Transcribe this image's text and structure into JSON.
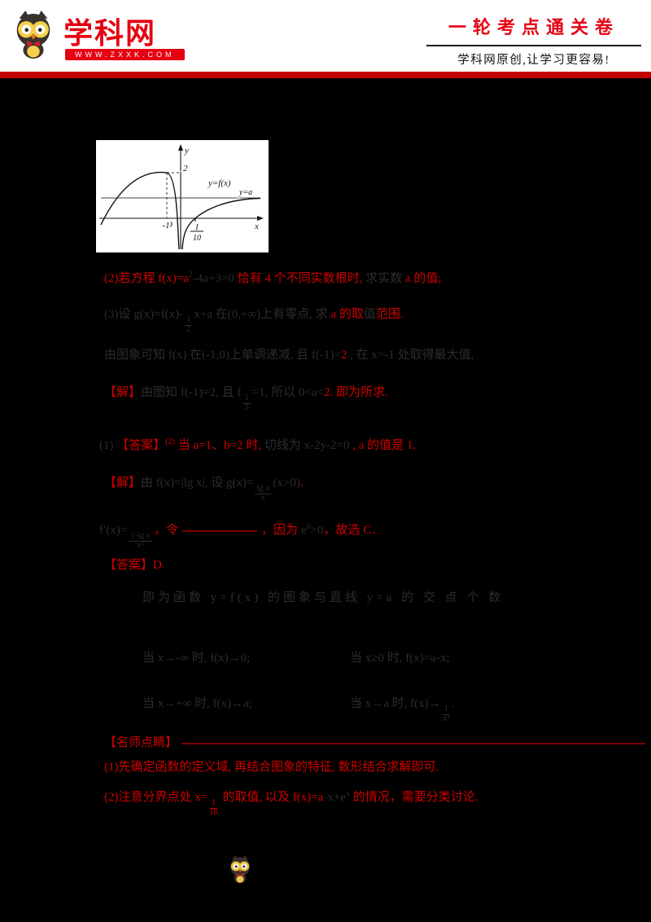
{
  "header": {
    "brand_name": "学科网",
    "brand_url": "WWW.ZXXK.COM",
    "title": "一轮考点通关卷",
    "slogan": "学科网原创,让学习更容易!"
  },
  "colors": {
    "accent_red": "#e60012",
    "rule_red": "#c40000",
    "text_red": "#cf0000",
    "dim_text": "#2c2c2c",
    "page_background": "#000000"
  },
  "icons": {
    "brand_logo": "owl-mascot-icon",
    "footer_logo": "owl-mascot-icon"
  },
  "figure": {
    "y_axis": "y",
    "x_axis": "x",
    "max_value": "2",
    "origin": "O",
    "x_neg1": "-1",
    "frac_num": "1",
    "frac_den": "10",
    "curve_label": "y=f(x)",
    "line_label": "y=a"
  },
  "lines": [
    {
      "name": "question-part2",
      "segments": [
        {
          "style": "red",
          "text": "(2)若方程 f(x)=a"
        },
        {
          "style": "supdim",
          "text": "2"
        },
        {
          "style": "dim",
          "text": "-4a+3=0 "
        },
        {
          "style": "red",
          "text": "恰有 4 个不同实数根时,"
        },
        {
          "style": "dim",
          "text": " 求实数 "
        },
        {
          "style": "red",
          "text": "a 的值;"
        }
      ]
    },
    {
      "name": "question-part3",
      "segments": [
        {
          "style": "dim",
          "text": "(3)设 g(x)=f(x)-"
        },
        {
          "style": "frac-dim",
          "num": "1",
          "den": "2"
        },
        {
          "style": "dim",
          "text": "x+a 在(0,+∞)上有零点, 求 "
        },
        {
          "style": "red",
          "text": "a 的取"
        },
        {
          "style": "dim",
          "text": "值"
        },
        {
          "style": "red",
          "text": "范围."
        }
      ]
    },
    {
      "name": "analysis-1",
      "segments": [
        {
          "style": "dim",
          "text": "由图象可知 f(x) 在(-1,0)上单调递减, 且 f(-1)="
        },
        {
          "style": "red",
          "text": "2"
        },
        {
          "style": "dim",
          "text": " , 在 x=-1 处取得最大值"
        },
        {
          "style": "dim",
          "text": ","
        }
      ]
    },
    {
      "name": "solution-1",
      "segments": [
        {
          "style": "red",
          "text": "【解】"
        },
        {
          "style": "dim",
          "text": "由图知 f(-1)=2, 且 f"
        },
        {
          "style": "frac-dim",
          "num": "1",
          "den": "3"
        },
        {
          "style": "dim",
          "text": "=1, 所以 0<a<"
        },
        {
          "style": "red",
          "text": "2. 即为所求."
        }
      ]
    },
    {
      "name": "answer-1",
      "segments": [
        {
          "style": "dim",
          "text": "(1) "
        },
        {
          "style": "red",
          "text": "【答案】"
        },
        {
          "style": "supred",
          "text": "(2)"
        },
        {
          "style": "red",
          "text": " 当 a=1、b=2 时,"
        },
        {
          "style": "dim",
          "text": " 切线为 x-2y-2=0 "
        },
        {
          "style": "red",
          "text": ", a 的值是 1."
        }
      ]
    },
    {
      "name": "solution-2",
      "segments": [
        {
          "style": "red",
          "text": "【解】"
        },
        {
          "style": "dim",
          "text": "由 f(x)=|lg x|, 设 g(x)="
        },
        {
          "style": "frac-dim",
          "num": "lg x",
          "den": "x"
        },
        {
          "style": "dim",
          "text": "(x>0)"
        },
        {
          "style": "red",
          "text": "."
        }
      ]
    },
    {
      "name": "derivative-line",
      "segments": [
        {
          "style": "dim",
          "text": "f′(x)="
        },
        {
          "style": "frac-dim",
          "num": "1-lg x",
          "den": "x²"
        },
        {
          "style": "red",
          "text": "，令"
        },
        {
          "style": "rule-mid"
        },
        {
          "style": "red",
          "text": "，因为 "
        },
        {
          "style": "dim",
          "text": "e"
        },
        {
          "style": "supdim",
          "text": "x"
        },
        {
          "style": "dim",
          "text": ">0"
        },
        {
          "style": "red",
          "text": "，故选 C．"
        }
      ]
    },
    {
      "name": "answer-2",
      "segments": [
        {
          "style": "red",
          "text": "【答案】D."
        }
      ]
    },
    {
      "name": "intersections-line",
      "segments": [
        {
          "style": "dim",
          "text": "即为函数 y=f(x) 的图象与直线 y=a 的 交 点 个 数"
        }
      ]
    },
    {
      "name": "limit-left-1",
      "segments": [
        {
          "style": "dim",
          "text": "当 x→-∞ 时, f(x)→0;"
        }
      ]
    },
    {
      "name": "limit-right-1",
      "segments": [
        {
          "style": "dim",
          "text": "当 x≥0 时, f(x)=a-x;"
        }
      ]
    },
    {
      "name": "limit-left-2",
      "segments": [
        {
          "style": "dim",
          "text": "当 x→+∞ 时, f(x)→a;"
        }
      ]
    },
    {
      "name": "limit-right-2",
      "segments": [
        {
          "style": "dim",
          "text": "当 x→a 时, f(x)→"
        },
        {
          "style": "frac-dim",
          "num": "1",
          "den": "x²"
        },
        {
          "style": "dim",
          "text": "."
        }
      ]
    },
    {
      "name": "teacher-note-title",
      "segments": [
        {
          "style": "red",
          "text": "【名师点睛】"
        },
        {
          "style": "rule-long"
        }
      ]
    },
    {
      "name": "teacher-note-1",
      "segments": [
        {
          "style": "red",
          "text": "(1)先确定函数的定义域, 再结合图象的特征, 数形结合求解即可."
        }
      ]
    },
    {
      "name": "teacher-note-2",
      "segments": [
        {
          "style": "red",
          "text": "(2)注意分界点处 x="
        },
        {
          "style": "frac-red",
          "num": "1",
          "den": "10"
        },
        {
          "style": "red",
          "text": " 的取值, 以及 f(x)=a"
        },
        {
          "style": "dim",
          "text": "-x+e"
        },
        {
          "style": "supdim",
          "text": "x"
        },
        {
          "style": "red",
          "text": " 的情况，需要分类讨论."
        }
      ]
    }
  ]
}
